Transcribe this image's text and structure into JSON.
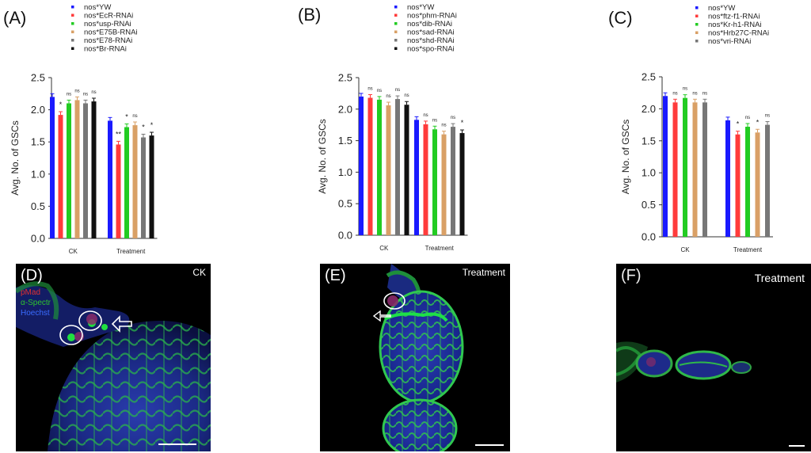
{
  "panels": {
    "A": "(A)",
    "B": "(B)",
    "C": "(C)",
    "D": "(D)",
    "E": "(E)",
    "F": "(F)"
  },
  "images": {
    "D": {
      "label": "CK",
      "stains": [
        "pMad",
        "α-Spectr",
        "Hoechst"
      ],
      "stain_colors": [
        "#e03030",
        "#2ec42e",
        "#3a6cff"
      ]
    },
    "E": {
      "label": "Treatment"
    },
    "F": {
      "label": "Treatment"
    }
  },
  "chart_data": [
    {
      "type": "bar",
      "ylabel": "Avg. No. of GSCs",
      "ylim": [
        0,
        2.5
      ],
      "yticks": [
        "0.0",
        "0.5",
        "1.0",
        "1.5",
        "2.0",
        "2.5"
      ],
      "categories": [
        "CK",
        "Treatment"
      ],
      "legend_position": "top",
      "series": [
        {
          "name": "nos*YW",
          "color": "#1a1aff",
          "values": [
            2.2,
            1.83
          ],
          "sig": [
            "",
            ""
          ]
        },
        {
          "name": "nos*EcR-RNAi",
          "color": "#ff3b3b",
          "values": [
            1.92,
            1.46
          ],
          "sig": [
            "*",
            "**"
          ]
        },
        {
          "name": "nos*usp-RNAi",
          "color": "#22cc22",
          "values": [
            2.1,
            1.73
          ],
          "sig": [
            "ns",
            "*"
          ]
        },
        {
          "name": "nos*E75B-RNAi",
          "color": "#d9a066",
          "values": [
            2.15,
            1.76
          ],
          "sig": [
            "ns",
            "ns"
          ]
        },
        {
          "name": "nos*E78-RNAi",
          "color": "#777777",
          "values": [
            2.1,
            1.57
          ],
          "sig": [
            "ns",
            "*"
          ]
        },
        {
          "name": "nos*Br-RNAi",
          "color": "#111111",
          "values": [
            2.13,
            1.6
          ],
          "sig": [
            "ns",
            "*"
          ]
        }
      ]
    },
    {
      "type": "bar",
      "ylabel": "Avg. No. of GSCs",
      "ylim": [
        0,
        2.5
      ],
      "yticks": [
        "0.0",
        "0.5",
        "1.0",
        "1.5",
        "2.0",
        "2.5"
      ],
      "categories": [
        "CK",
        "Treatment"
      ],
      "legend_position": "top",
      "series": [
        {
          "name": "nos*YW",
          "color": "#1a1aff",
          "values": [
            2.2,
            1.83
          ],
          "sig": [
            "",
            ""
          ]
        },
        {
          "name": "nos*phm-RNAi",
          "color": "#ff3b3b",
          "values": [
            2.18,
            1.76
          ],
          "sig": [
            "ns",
            "ns"
          ]
        },
        {
          "name": "nos*dib-RNAi",
          "color": "#22cc22",
          "values": [
            2.15,
            1.68
          ],
          "sig": [
            "ns",
            "ns"
          ]
        },
        {
          "name": "nos*sad-RNAi",
          "color": "#d9a066",
          "values": [
            2.06,
            1.6
          ],
          "sig": [
            "ns",
            "ns"
          ]
        },
        {
          "name": "nos*shd-RNAi",
          "color": "#777777",
          "values": [
            2.16,
            1.72
          ],
          "sig": [
            "ns",
            "ns"
          ]
        },
        {
          "name": "nos*spo-RNAi",
          "color": "#111111",
          "values": [
            2.07,
            1.62
          ],
          "sig": [
            "ns",
            "*"
          ]
        }
      ]
    },
    {
      "type": "bar",
      "ylabel": "Avg. No. of GSCs",
      "ylim": [
        0,
        2.5
      ],
      "yticks": [
        "0.0",
        "0.5",
        "1.0",
        "1.5",
        "2.0",
        "2.5"
      ],
      "categories": [
        "CK",
        "Treatment"
      ],
      "legend_position": "top",
      "series": [
        {
          "name": "nos*YW",
          "color": "#1a1aff",
          "values": [
            2.2,
            1.82
          ],
          "sig": [
            "",
            ""
          ]
        },
        {
          "name": "nos*ftz-f1-RNAi",
          "color": "#ff3b3b",
          "values": [
            2.1,
            1.6
          ],
          "sig": [
            "ns",
            "*"
          ]
        },
        {
          "name": "nos*Kr-h1-RNAi",
          "color": "#22cc22",
          "values": [
            2.17,
            1.72
          ],
          "sig": [
            "ns",
            "ns"
          ]
        },
        {
          "name": "nos*Hrb27C-RNAi",
          "color": "#d9a066",
          "values": [
            2.1,
            1.63
          ],
          "sig": [
            "ns",
            "*"
          ]
        },
        {
          "name": "nos*vri-RNAi",
          "color": "#777777",
          "values": [
            2.1,
            1.75
          ],
          "sig": [
            "ns",
            "ns"
          ]
        }
      ]
    }
  ]
}
